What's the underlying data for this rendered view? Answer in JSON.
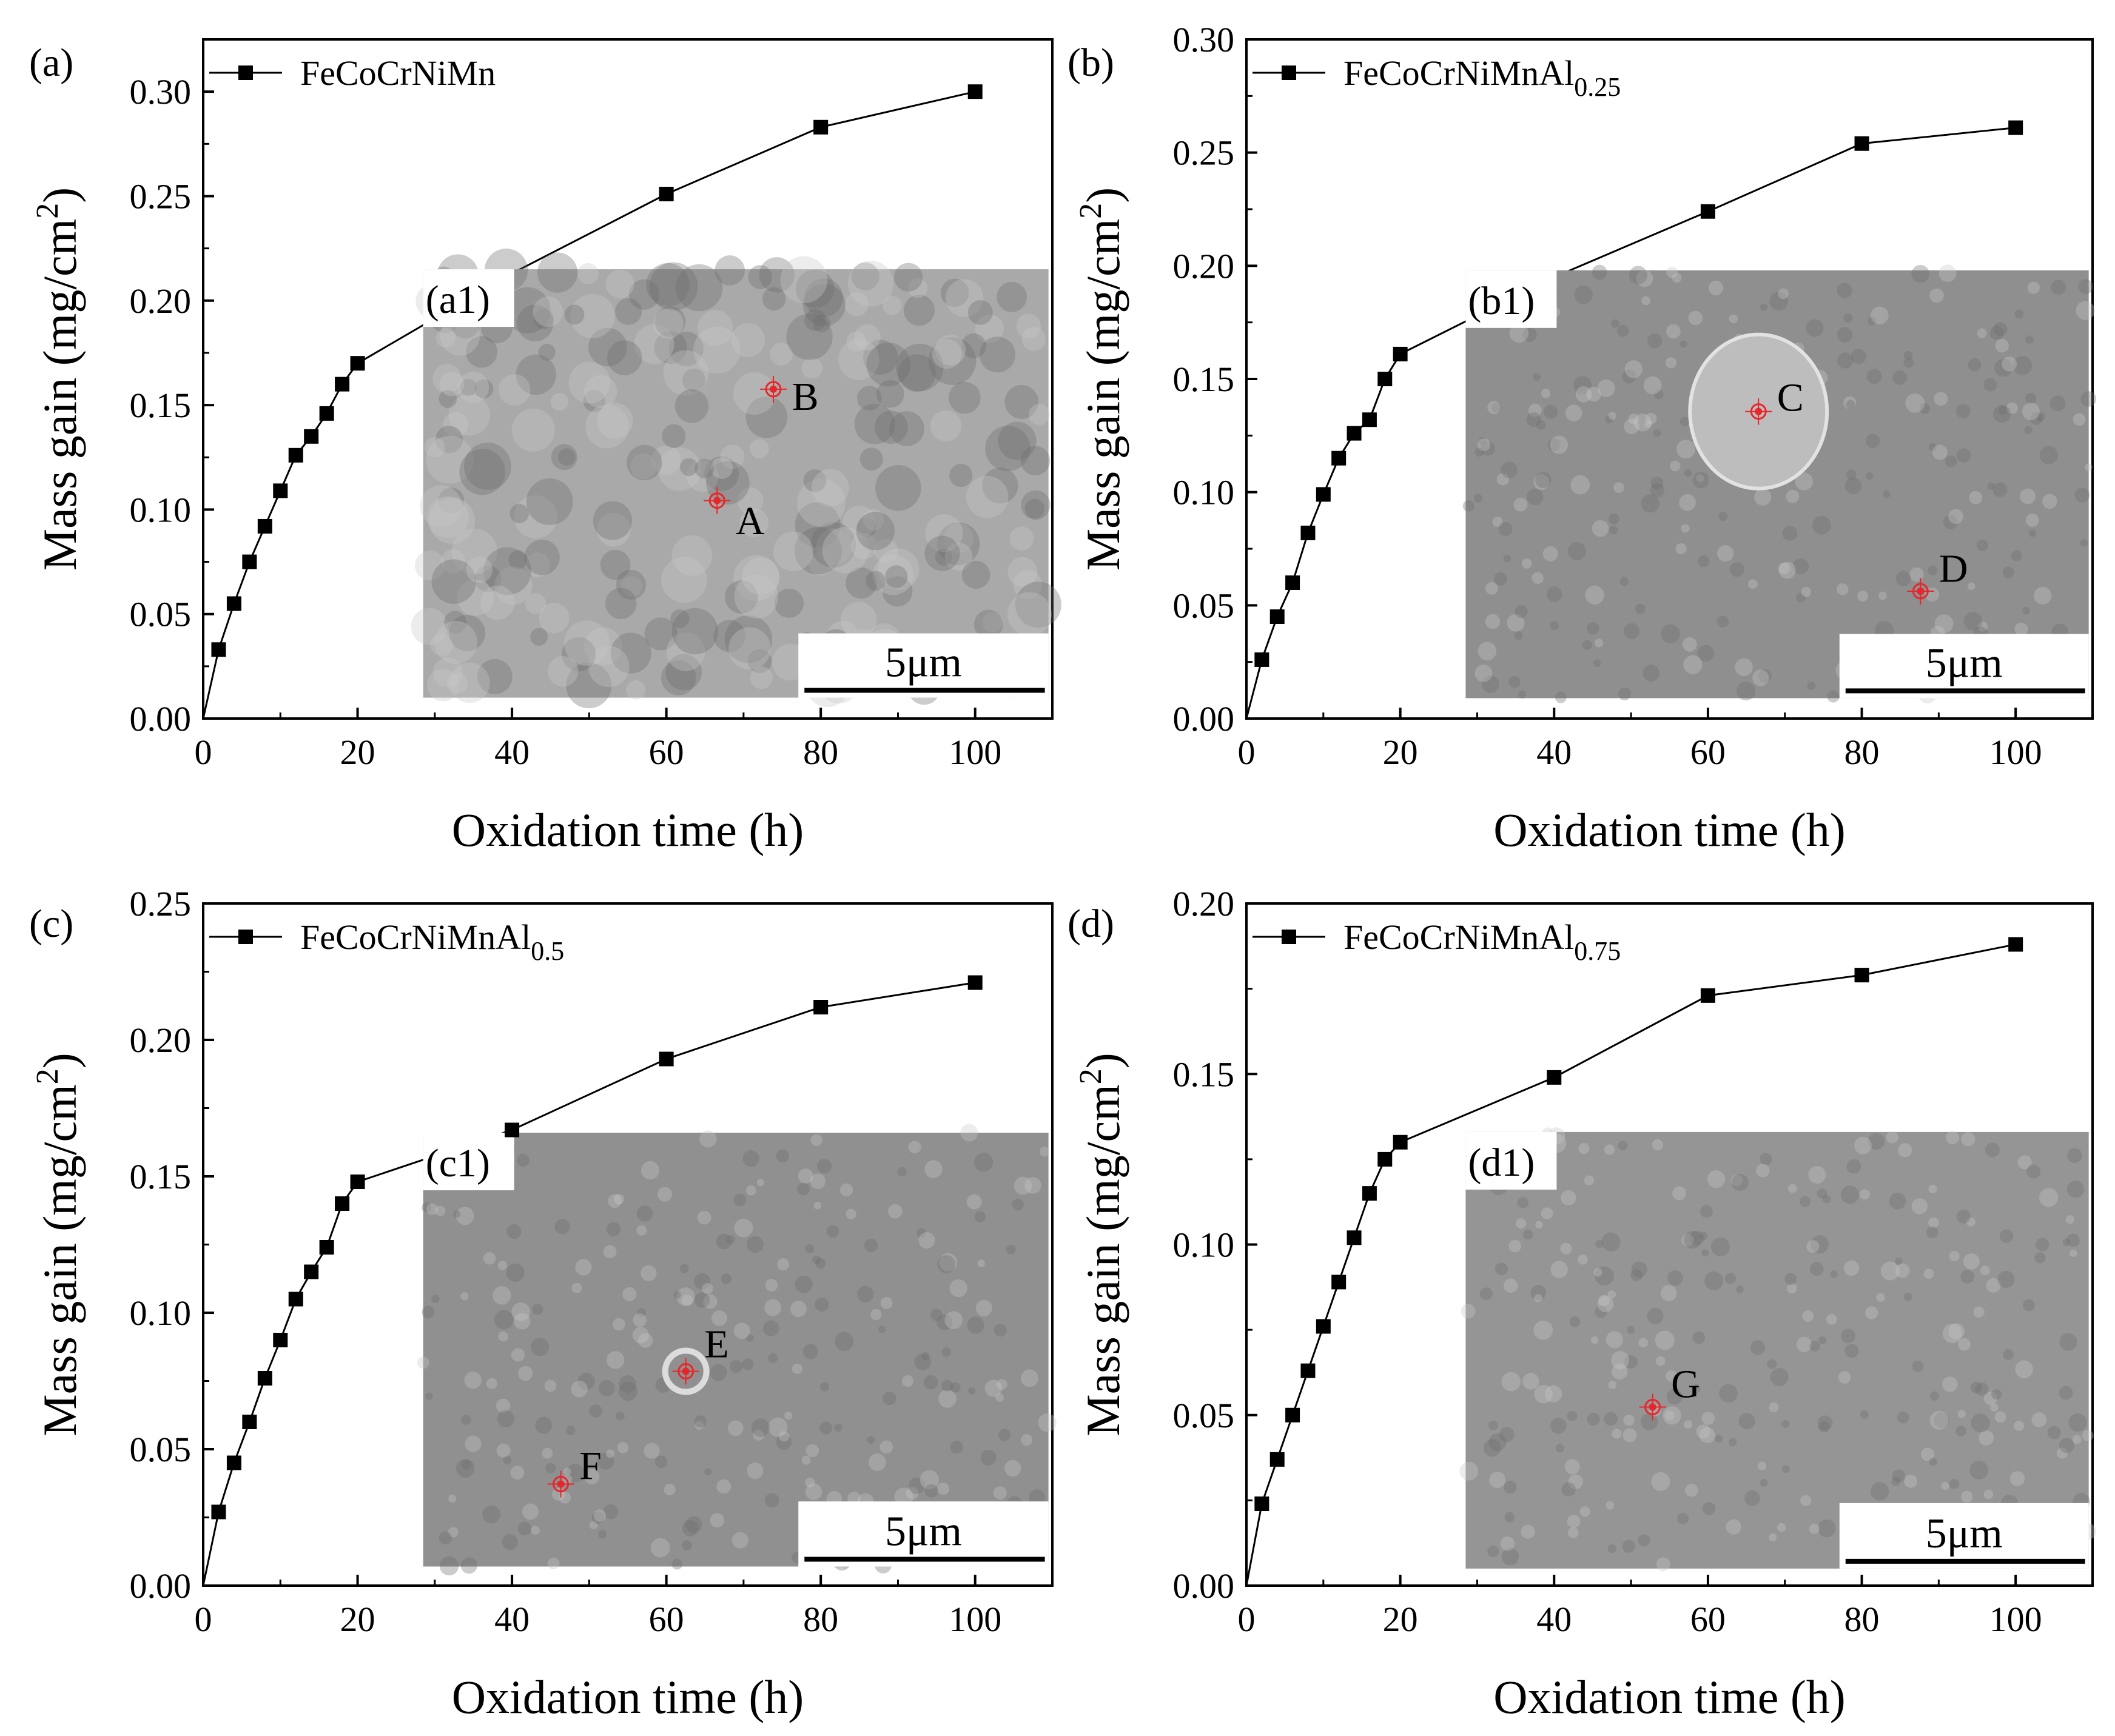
{
  "figure": {
    "x_label": "Oxidation time (h)",
    "y_label_main": "Mass gain (mg/cm",
    "y_label_sup": "2",
    "y_label_end": ")",
    "scale_bar_label": "5μm",
    "marker_color": "#e8262a",
    "sem_colors": [
      "#a9a9a9",
      "#8f8f8f",
      "#909090",
      "#959595"
    ]
  },
  "chart_data": [
    {
      "type": "line",
      "panel_label": "(a)",
      "inset_label": "(a1)",
      "legend": {
        "base": "FeCoCrNiMn",
        "sub": ""
      },
      "xlim": [
        0,
        110
      ],
      "ylim": [
        0,
        0.325
      ],
      "x_ticks": [
        "0",
        "20",
        "40",
        "60",
        "80",
        "100"
      ],
      "x_tick_values": [
        0,
        20,
        40,
        60,
        80,
        100
      ],
      "y_ticks": [
        "0.00",
        "0.05",
        "0.10",
        "0.15",
        "0.20",
        "0.25",
        "0.30"
      ],
      "y_tick_values": [
        0,
        0.05,
        0.1,
        0.15,
        0.2,
        0.25,
        0.3
      ],
      "x": [
        2,
        4,
        6,
        8,
        10,
        12,
        14,
        16,
        18,
        20,
        40,
        60,
        80,
        100
      ],
      "y": [
        0.033,
        0.055,
        0.075,
        0.092,
        0.109,
        0.126,
        0.135,
        0.146,
        0.16,
        0.17,
        0.213,
        0.251,
        0.283,
        0.3
      ],
      "inset_points": [
        "B",
        "A"
      ]
    },
    {
      "type": "line",
      "panel_label": "(b)",
      "inset_label": "(b1)",
      "legend": {
        "base": "FeCoCrNiMnAl",
        "sub": "0.25"
      },
      "xlim": [
        0,
        110
      ],
      "ylim": [
        0,
        0.3
      ],
      "x_ticks": [
        "0",
        "20",
        "40",
        "60",
        "80",
        "100"
      ],
      "x_tick_values": [
        0,
        20,
        40,
        60,
        80,
        100
      ],
      "y_ticks": [
        "0.00",
        "0.05",
        "0.10",
        "0.15",
        "0.20",
        "0.25",
        "0.30"
      ],
      "y_tick_values": [
        0,
        0.05,
        0.1,
        0.15,
        0.2,
        0.25,
        0.3
      ],
      "x": [
        2,
        4,
        6,
        8,
        10,
        12,
        14,
        16,
        18,
        20,
        40,
        60,
        80,
        100
      ],
      "y": [
        0.026,
        0.045,
        0.06,
        0.082,
        0.099,
        0.115,
        0.126,
        0.132,
        0.15,
        0.161,
        0.195,
        0.224,
        0.254,
        0.261
      ],
      "inset_points": [
        "C",
        "D"
      ]
    },
    {
      "type": "line",
      "panel_label": "(c)",
      "inset_label": "(c1)",
      "legend": {
        "base": "FeCoCrNiMnAl",
        "sub": "0.5"
      },
      "xlim": [
        0,
        110
      ],
      "ylim": [
        0,
        0.25
      ],
      "x_ticks": [
        "0",
        "20",
        "40",
        "60",
        "80",
        "100"
      ],
      "x_tick_values": [
        0,
        20,
        40,
        60,
        80,
        100
      ],
      "y_ticks": [
        "0.00",
        "0.05",
        "0.10",
        "0.15",
        "0.20",
        "0.25"
      ],
      "y_tick_values": [
        0,
        0.05,
        0.1,
        0.15,
        0.2,
        0.25
      ],
      "x": [
        2,
        4,
        6,
        8,
        10,
        12,
        14,
        16,
        18,
        20,
        40,
        60,
        80,
        100
      ],
      "y": [
        0.027,
        0.045,
        0.06,
        0.076,
        0.09,
        0.105,
        0.115,
        0.124,
        0.14,
        0.148,
        0.167,
        0.193,
        0.212,
        0.221
      ],
      "inset_points": [
        "E",
        "F"
      ]
    },
    {
      "type": "line",
      "panel_label": "(d)",
      "inset_label": "(d1)",
      "legend": {
        "base": "FeCoCrNiMnAl",
        "sub": "0.75"
      },
      "xlim": [
        0,
        110
      ],
      "ylim": [
        0,
        0.2
      ],
      "x_ticks": [
        "0",
        "20",
        "40",
        "60",
        "80",
        "100"
      ],
      "x_tick_values": [
        0,
        20,
        40,
        60,
        80,
        100
      ],
      "y_ticks": [
        "0.00",
        "0.05",
        "0.10",
        "0.15",
        "0.20"
      ],
      "y_tick_values": [
        0,
        0.05,
        0.1,
        0.15,
        0.2
      ],
      "x": [
        2,
        4,
        6,
        8,
        10,
        12,
        14,
        16,
        18,
        20,
        40,
        60,
        80,
        100
      ],
      "y": [
        0.024,
        0.037,
        0.05,
        0.063,
        0.076,
        0.089,
        0.102,
        0.115,
        0.125,
        0.13,
        0.149,
        0.173,
        0.179,
        0.188
      ],
      "inset_points": [
        "G"
      ]
    }
  ]
}
